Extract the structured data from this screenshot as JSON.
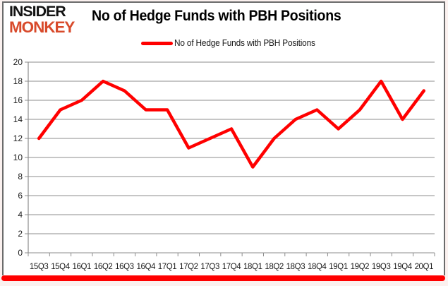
{
  "header": {
    "logo_line1": "INSIDER",
    "logo_line2": "MONKEY",
    "title": "No of Hedge Funds with PBH Positions"
  },
  "legend": {
    "label": "No of Hedge Funds with PBH Positions",
    "swatch_color": "#ff0000"
  },
  "chart_data": {
    "type": "line",
    "title": "No of Hedge Funds with PBH Positions",
    "categories": [
      "15Q3",
      "15Q4",
      "16Q1",
      "16Q2",
      "16Q3",
      "16Q4",
      "17Q1",
      "17Q2",
      "17Q3",
      "17Q4",
      "18Q1",
      "18Q2",
      "18Q3",
      "18Q4",
      "19Q1",
      "19Q2",
      "19Q3",
      "19Q4",
      "20Q1"
    ],
    "series": [
      {
        "name": "No of Hedge Funds with PBH Positions",
        "color": "#ff0000",
        "values": [
          12,
          15,
          16,
          18,
          17,
          15,
          15,
          11,
          12,
          13,
          9,
          12,
          14,
          15,
          13,
          15,
          18,
          14,
          17
        ]
      }
    ],
    "xlabel": "",
    "ylabel": "",
    "ylim": [
      0,
      20
    ],
    "ytick_step": 2,
    "grid": true,
    "legend_position": "top"
  },
  "colors": {
    "line": "#ff0000",
    "grid": "#8c8c8c",
    "axis": "#8c8c8c",
    "axis_text": "#1a1a1a",
    "logo_black": "#121212",
    "logo_red": "#d84a2b",
    "frame": "#6b6b6b",
    "bottom_bar": "#ff0000"
  }
}
